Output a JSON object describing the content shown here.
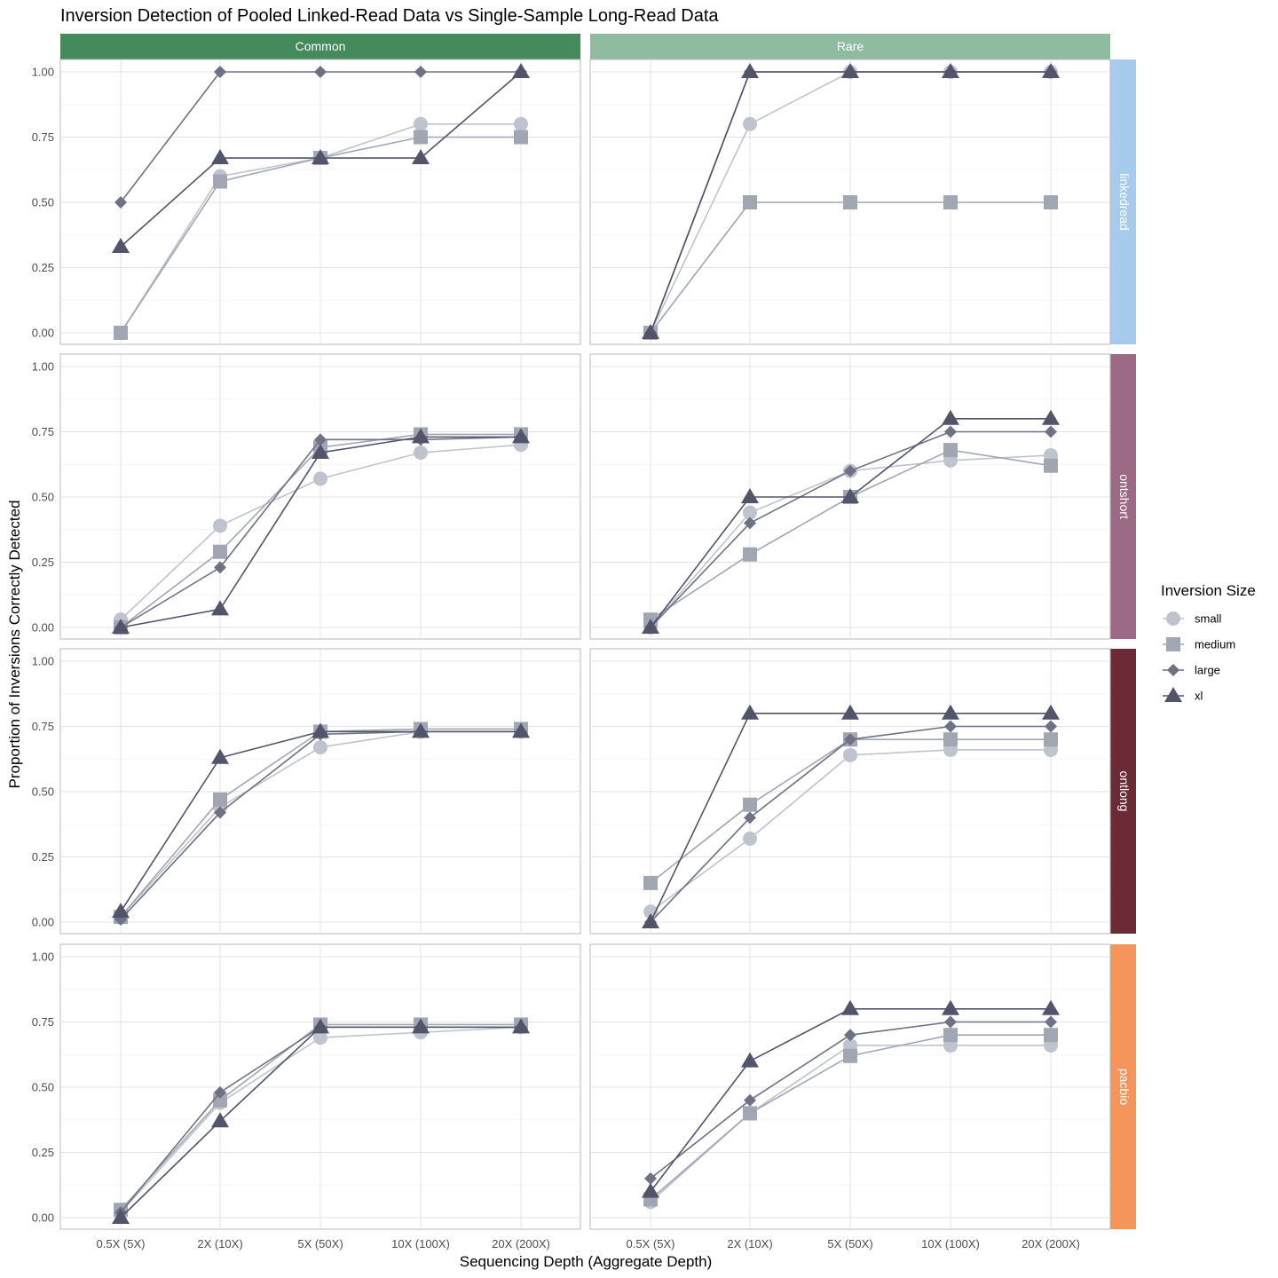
{
  "title": "Inversion Detection of Pooled Linked-Read Data vs Single-Sample Long-Read Data",
  "xlabel": "Sequencing Depth (Aggregate Depth)",
  "ylabel": "Proportion of Inversions Correctly Detected",
  "legend": {
    "title": "Inversion Size",
    "position": "right",
    "items": [
      {
        "key": "small",
        "label": "small",
        "color": "#bfc3cd",
        "shape": "circle"
      },
      {
        "key": "medium",
        "label": "medium",
        "color": "#a1a6b3",
        "shape": "square"
      },
      {
        "key": "large",
        "label": "large",
        "color": "#6e7282",
        "shape": "diamond"
      },
      {
        "key": "xl",
        "label": "xl",
        "color": "#52546a",
        "shape": "triangle"
      }
    ]
  },
  "col_facets": [
    {
      "label": "Common",
      "color": "#458a5b"
    },
    {
      "label": "Rare",
      "color": "#8fbba0"
    }
  ],
  "row_facets": [
    {
      "label": "linkedread",
      "color": "#a6cbec"
    },
    {
      "label": "ontshort",
      "color": "#9c6a84"
    },
    {
      "label": "ontlong",
      "color": "#6a2b36"
    },
    {
      "label": "pacbio",
      "color": "#f4965b"
    }
  ],
  "chart_data": {
    "type": "line",
    "categories": [
      "0.5X (5X)",
      "2X (10X)",
      "5X (50X)",
      "10X (100X)",
      "20X (200X)"
    ],
    "ylim": [
      0,
      1
    ],
    "yticks": [
      0,
      0.25,
      0.5,
      0.75,
      1
    ],
    "ytick_labels": [
      "0.00",
      "0.25",
      "0.50",
      "0.75",
      "1.00"
    ],
    "grid": true,
    "panels": [
      {
        "row": "linkedread",
        "col": "Common",
        "series": {
          "small": [
            0.0,
            0.6,
            0.67,
            0.8,
            0.8
          ],
          "medium": [
            0.0,
            0.58,
            0.67,
            0.75,
            0.75
          ],
          "large": [
            0.5,
            1.0,
            1.0,
            1.0,
            1.0
          ],
          "xl": [
            0.33,
            0.67,
            0.67,
            0.67,
            1.0
          ]
        }
      },
      {
        "row": "linkedread",
        "col": "Rare",
        "series": {
          "small": [
            0.0,
            0.8,
            1.0,
            1.0,
            1.0
          ],
          "medium": [
            0.0,
            0.5,
            0.5,
            0.5,
            0.5
          ],
          "large": [
            0.0,
            1.0,
            1.0,
            1.0,
            1.0
          ],
          "xl": [
            0.0,
            1.0,
            1.0,
            1.0,
            1.0
          ]
        }
      },
      {
        "row": "ontshort",
        "col": "Common",
        "series": {
          "small": [
            0.03,
            0.39,
            0.57,
            0.67,
            0.7
          ],
          "medium": [
            0.0,
            0.29,
            0.69,
            0.74,
            0.74
          ],
          "large": [
            0.0,
            0.23,
            0.72,
            0.72,
            0.73
          ],
          "xl": [
            0.0,
            0.07,
            0.67,
            0.73,
            0.73
          ]
        }
      },
      {
        "row": "ontshort",
        "col": "Rare",
        "series": {
          "small": [
            0.0,
            0.44,
            0.6,
            0.64,
            0.66
          ],
          "medium": [
            0.03,
            0.28,
            0.5,
            0.68,
            0.62
          ],
          "large": [
            0.0,
            0.4,
            0.6,
            0.75,
            0.75
          ],
          "xl": [
            0.0,
            0.5,
            0.5,
            0.8,
            0.8
          ]
        }
      },
      {
        "row": "ontlong",
        "col": "Common",
        "series": {
          "small": [
            0.02,
            0.44,
            0.67,
            0.73,
            0.73
          ],
          "medium": [
            0.02,
            0.47,
            0.73,
            0.74,
            0.74
          ],
          "large": [
            0.01,
            0.42,
            0.72,
            0.73,
            0.73
          ],
          "xl": [
            0.04,
            0.63,
            0.73,
            0.73,
            0.73
          ]
        }
      },
      {
        "row": "ontlong",
        "col": "Rare",
        "series": {
          "small": [
            0.04,
            0.32,
            0.64,
            0.66,
            0.66
          ],
          "medium": [
            0.15,
            0.45,
            0.7,
            0.7,
            0.7
          ],
          "large": [
            0.0,
            0.4,
            0.7,
            0.75,
            0.75
          ],
          "xl": [
            0.0,
            0.8,
            0.8,
            0.8,
            0.8
          ]
        }
      },
      {
        "row": "pacbio",
        "col": "Common",
        "series": {
          "small": [
            0.02,
            0.44,
            0.69,
            0.71,
            0.73
          ],
          "medium": [
            0.03,
            0.45,
            0.74,
            0.74,
            0.74
          ],
          "large": [
            0.02,
            0.48,
            0.73,
            0.73,
            0.73
          ],
          "xl": [
            0.0,
            0.37,
            0.73,
            0.73,
            0.73
          ]
        }
      },
      {
        "row": "pacbio",
        "col": "Rare",
        "series": {
          "small": [
            0.06,
            0.4,
            0.66,
            0.66,
            0.66
          ],
          "medium": [
            0.07,
            0.4,
            0.62,
            0.7,
            0.7
          ],
          "large": [
            0.15,
            0.45,
            0.7,
            0.75,
            0.75
          ],
          "xl": [
            0.1,
            0.6,
            0.8,
            0.8,
            0.8
          ]
        }
      }
    ]
  }
}
